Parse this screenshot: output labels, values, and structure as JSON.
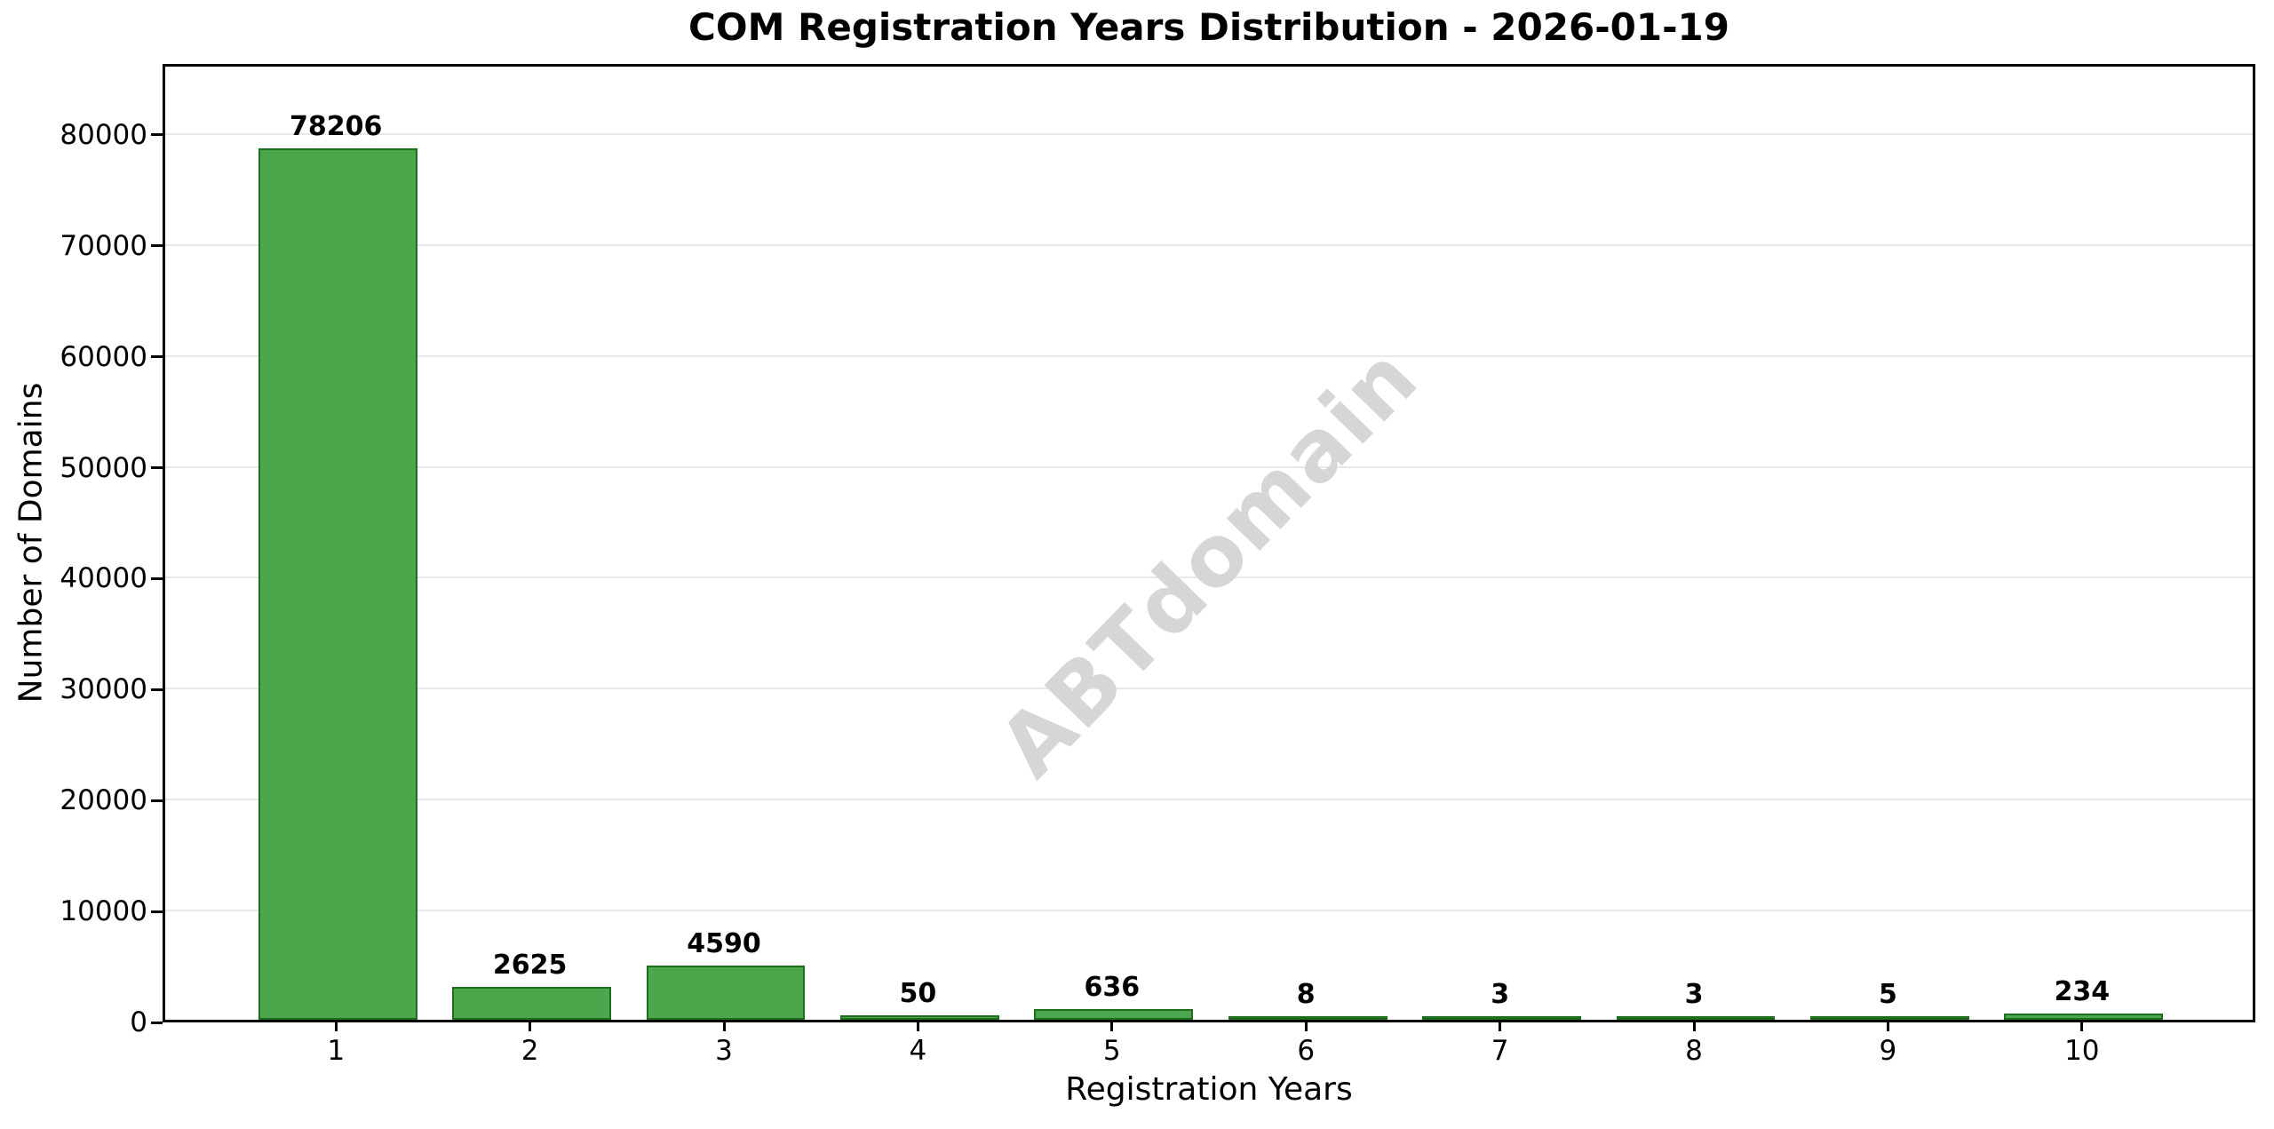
{
  "chart_data": {
    "type": "bar",
    "title": "COM Registration Years Distribution - 2026-01-19",
    "xlabel": "Registration Years",
    "ylabel": "Number of Domains",
    "categories": [
      "1",
      "2",
      "3",
      "4",
      "5",
      "6",
      "7",
      "8",
      "9",
      "10"
    ],
    "values": [
      78206,
      2625,
      4590,
      50,
      636,
      8,
      3,
      3,
      5,
      234
    ],
    "bar_value_labels": [
      "78206",
      "2625",
      "4590",
      "50",
      "636",
      "8",
      "3",
      "3",
      "5",
      "234"
    ],
    "yticks": [
      0,
      10000,
      20000,
      30000,
      40000,
      50000,
      60000,
      70000,
      80000
    ],
    "ytick_labels": [
      "0",
      "10000",
      "20000",
      "30000",
      "40000",
      "50000",
      "60000",
      "70000",
      "80000"
    ],
    "ylim": [
      0,
      86400
    ],
    "grid": "horizontal",
    "legend_position": "none",
    "bar_color": "#4ca64c",
    "bar_edge_color": "#1f6e1f",
    "gridline_color": "#e8e8e8",
    "watermark": "ABTdomain",
    "watermark_color": "#d6d6d6",
    "background_color": "#ffffff"
  }
}
